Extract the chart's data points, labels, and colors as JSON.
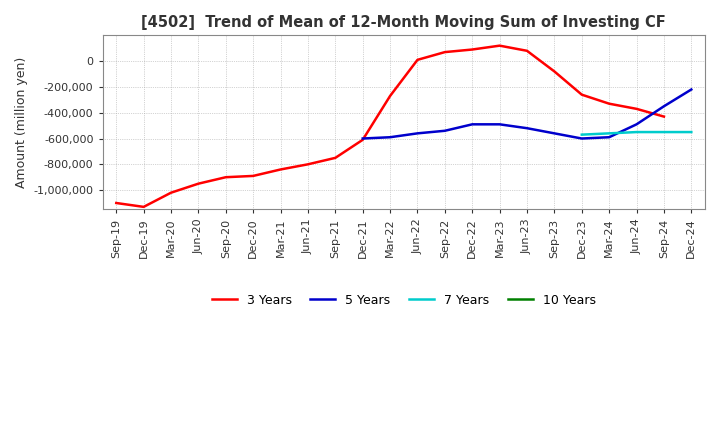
{
  "title": "[4502]  Trend of Mean of 12-Month Moving Sum of Investing CF",
  "ylabel": "Amount (million yen)",
  "background_color": "#ffffff",
  "grid_color": "#aaaaaa",
  "x_labels": [
    "Sep-19",
    "Dec-19",
    "Mar-20",
    "Jun-20",
    "Sep-20",
    "Dec-20",
    "Mar-21",
    "Jun-21",
    "Sep-21",
    "Dec-21",
    "Mar-22",
    "Jun-22",
    "Sep-22",
    "Dec-22",
    "Mar-23",
    "Jun-23",
    "Sep-23",
    "Dec-23",
    "Mar-24",
    "Jun-24",
    "Sep-24",
    "Dec-24"
  ],
  "ylim": [
    -1150000,
    200000
  ],
  "yticks": [
    0,
    -200000,
    -400000,
    -600000,
    -800000,
    -1000000
  ],
  "line_3y": {
    "color": "#ff0000",
    "label": "3 Years",
    "values": [
      -1100000,
      -1130000,
      -1020000,
      -950000,
      -900000,
      -890000,
      -840000,
      -800000,
      -750000,
      -610000,
      -270000,
      10000,
      70000,
      90000,
      120000,
      80000,
      -80000,
      -260000,
      -330000,
      -370000,
      -430000,
      null
    ]
  },
  "line_5y": {
    "color": "#0000cc",
    "label": "5 Years",
    "values": [
      null,
      null,
      null,
      null,
      null,
      null,
      null,
      null,
      null,
      -600000,
      -590000,
      -560000,
      -540000,
      -490000,
      -490000,
      -520000,
      -560000,
      -600000,
      -590000,
      -490000,
      -350000,
      -220000
    ]
  },
  "line_7y": {
    "color": "#00cccc",
    "label": "7 Years",
    "values": [
      null,
      null,
      null,
      null,
      null,
      null,
      null,
      null,
      null,
      null,
      null,
      null,
      null,
      null,
      null,
      null,
      null,
      -570000,
      -560000,
      -550000,
      -550000,
      -550000
    ]
  },
  "line_10y": {
    "color": "#008000",
    "label": "10 Years",
    "values": [
      null,
      null,
      null,
      null,
      null,
      null,
      null,
      null,
      null,
      null,
      null,
      null,
      null,
      null,
      null,
      null,
      null,
      null,
      null,
      null,
      null,
      null
    ]
  }
}
